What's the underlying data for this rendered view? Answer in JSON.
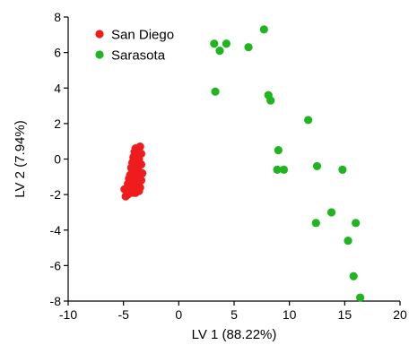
{
  "chart_data": {
    "type": "scatter",
    "xlabel": "LV 1 (88.22%)",
    "ylabel": "LV 2 (7.94%)",
    "xlim": [
      -10,
      20
    ],
    "ylim": [
      -8,
      8
    ],
    "xticks": [
      -10,
      -5,
      0,
      5,
      10,
      15,
      20
    ],
    "yticks": [
      -8,
      -6,
      -4,
      -2,
      0,
      2,
      4,
      6,
      8
    ],
    "legend_position": "top-left",
    "grid": false,
    "series": [
      {
        "name": "San Diego",
        "color": "#ee1c1c",
        "points": [
          [
            -4.8,
            -2.1
          ],
          [
            -4.6,
            -2.0
          ],
          [
            -4.9,
            -1.7
          ],
          [
            -4.4,
            -1.8
          ],
          [
            -4.6,
            -1.4
          ],
          [
            -4.3,
            -1.5
          ],
          [
            -4.5,
            -1.1
          ],
          [
            -4.2,
            -1.2
          ],
          [
            -4.4,
            -0.9
          ],
          [
            -4.1,
            -0.8
          ],
          [
            -4.3,
            -0.5
          ],
          [
            -4.0,
            -0.4
          ],
          [
            -4.2,
            -0.2
          ],
          [
            -3.9,
            -0.1
          ],
          [
            -4.1,
            0.1
          ],
          [
            -3.8,
            0.2
          ],
          [
            -4.0,
            0.4
          ],
          [
            -3.7,
            0.5
          ],
          [
            -3.9,
            0.6
          ],
          [
            -3.5,
            0.7
          ],
          [
            -3.8,
            -1.6
          ],
          [
            -3.6,
            -1.3
          ],
          [
            -3.9,
            -1.9
          ],
          [
            -3.5,
            -0.9
          ],
          [
            -3.7,
            -0.6
          ],
          [
            -3.4,
            -0.3
          ],
          [
            -3.6,
            0.0
          ],
          [
            -3.5,
            -1.6
          ],
          [
            -3.3,
            -0.8
          ],
          [
            -3.4,
            0.3
          ],
          [
            -4.0,
            -1.4
          ],
          [
            -4.1,
            -1.9
          ],
          [
            -3.8,
            -1.1
          ],
          [
            -3.6,
            -1.8
          ],
          [
            -3.4,
            -1.2
          ]
        ]
      },
      {
        "name": "Sarasota",
        "color": "#1eb51e",
        "points": [
          [
            3.2,
            6.5
          ],
          [
            3.7,
            6.1
          ],
          [
            4.3,
            6.5
          ],
          [
            6.3,
            6.3
          ],
          [
            7.7,
            7.3
          ],
          [
            3.3,
            3.8
          ],
          [
            8.1,
            3.6
          ],
          [
            8.3,
            3.3
          ],
          [
            11.7,
            2.2
          ],
          [
            9.0,
            0.5
          ],
          [
            8.9,
            -0.6
          ],
          [
            9.5,
            -0.6
          ],
          [
            12.5,
            -0.4
          ],
          [
            14.8,
            -0.6
          ],
          [
            13.8,
            -3.0
          ],
          [
            12.4,
            -3.6
          ],
          [
            16.0,
            -3.6
          ],
          [
            15.3,
            -4.6
          ],
          [
            15.8,
            -6.6
          ],
          [
            16.4,
            -7.8
          ]
        ]
      }
    ]
  }
}
